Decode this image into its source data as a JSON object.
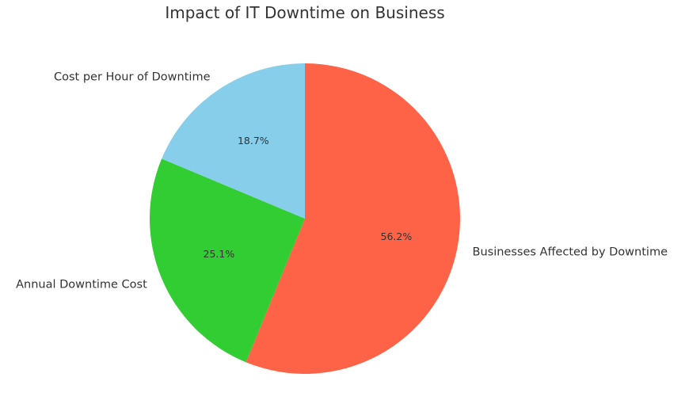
{
  "chart_data": {
    "type": "pie",
    "title": "Impact of IT Downtime on Business",
    "categories": [
      "Businesses Affected by Downtime",
      "Annual Downtime Cost",
      "Cost per Hour of Downtime"
    ],
    "values": [
      56.2,
      25.1,
      18.7
    ],
    "value_labels": [
      "56.2%",
      "25.1%",
      "18.7%"
    ],
    "colors": [
      "#ff6347",
      "#32cd32",
      "#87ceeb"
    ],
    "start_angle_deg": 90,
    "direction": "clockwise",
    "legend": "none"
  }
}
